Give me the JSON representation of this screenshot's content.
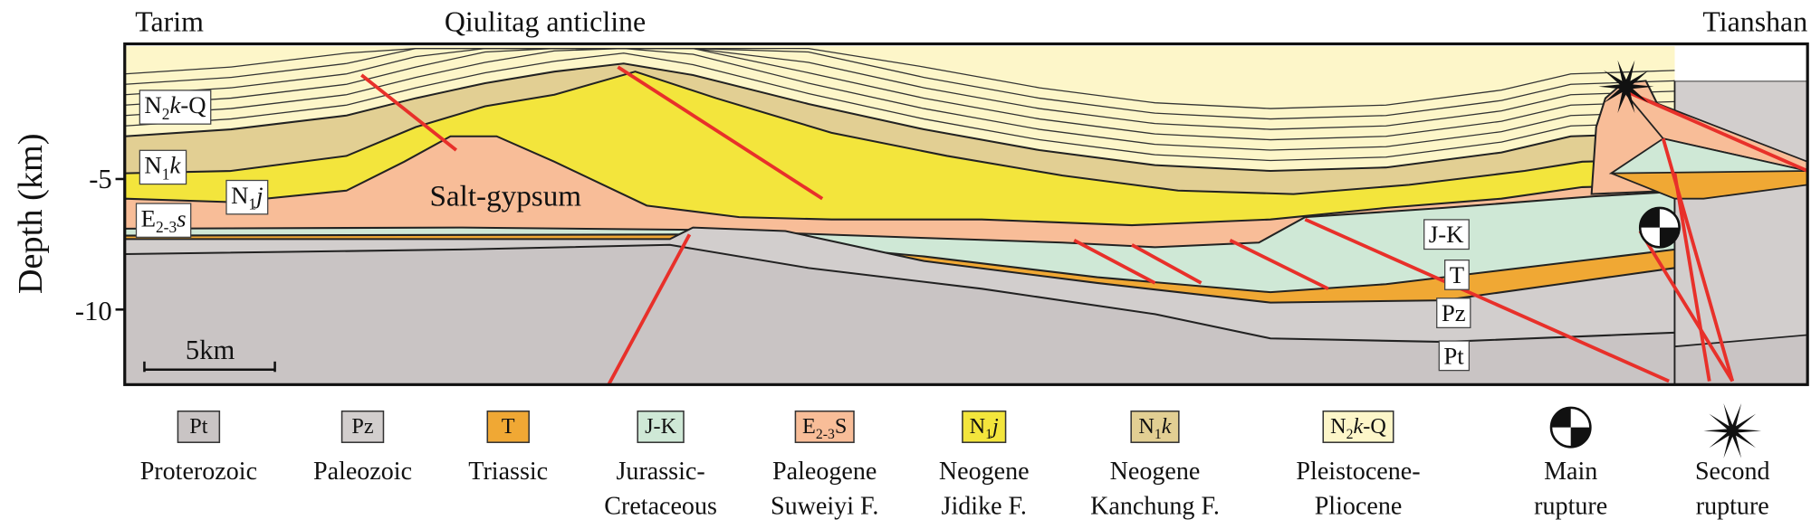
{
  "header": {
    "left": "Tarim",
    "center": "Qiulitag anticline",
    "right": "Tianshan"
  },
  "axis": {
    "label": "Depth (km)",
    "ticks": [
      "-5",
      "-10"
    ]
  },
  "scale_bar": "5km",
  "section_labels": [
    [
      {
        "t": "N"
      },
      {
        "t": "2",
        "sub": true
      },
      {
        "t": "k",
        "italic": true
      },
      {
        "t": "-Q"
      }
    ],
    [
      {
        "t": "N"
      },
      {
        "t": "1",
        "sub": true
      },
      {
        "t": "k",
        "italic": true
      }
    ],
    [
      {
        "t": "N"
      },
      {
        "t": "1",
        "sub": true
      },
      {
        "t": "j",
        "italic": true
      }
    ],
    [
      {
        "t": "E"
      },
      {
        "t": "2-3",
        "sub": true
      },
      {
        "t": "s",
        "italic": true
      }
    ],
    [
      {
        "t": "Salt-gypsum"
      }
    ],
    [
      {
        "t": "J-K"
      }
    ],
    [
      {
        "t": "T"
      }
    ],
    [
      {
        "t": "Pz"
      }
    ],
    [
      {
        "t": "Pt"
      }
    ]
  ],
  "legend": [
    {
      "symbol": [
        {
          "t": "Pt"
        }
      ],
      "color": "#c9c4c4",
      "label": [
        "Proterozoic"
      ]
    },
    {
      "symbol": [
        {
          "t": "Pz"
        }
      ],
      "color": "#d2cecd",
      "label": [
        "Paleozoic"
      ]
    },
    {
      "symbol": [
        {
          "t": "T"
        }
      ],
      "color": "#f0a834",
      "label": [
        "Triassic"
      ]
    },
    {
      "symbol": [
        {
          "t": "J-K"
        }
      ],
      "color": "#cfe8d6",
      "label": [
        "Jurassic-",
        "Cretaceous"
      ]
    },
    {
      "symbol": [
        {
          "t": "E"
        },
        {
          "t": "2-3",
          "sub": true
        },
        {
          "t": "S"
        }
      ],
      "color": "#f8bd98",
      "label": [
        "Paleogene",
        "Suweiyi F."
      ]
    },
    {
      "symbol": [
        {
          "t": "N"
        },
        {
          "t": "1",
          "sub": true
        },
        {
          "t": "j",
          "italic": true
        }
      ],
      "color": "#f3e53c",
      "label": [
        "Neogene",
        "Jidike F."
      ]
    },
    {
      "symbol": [
        {
          "t": "N"
        },
        {
          "t": "1",
          "sub": true
        },
        {
          "t": "k",
          "italic": true
        }
      ],
      "color": "#e2cf93",
      "label": [
        "Neogene",
        "Kanchung F."
      ]
    },
    {
      "symbol": [
        {
          "t": "N"
        },
        {
          "t": "2",
          "sub": true
        },
        {
          "t": "k",
          "italic": true
        },
        {
          "t": "-Q"
        }
      ],
      "color": "#fdf6c9",
      "label": [
        "Pleistocene-",
        "Pliocene"
      ]
    },
    {
      "icon": "beachball",
      "label": [
        "Main",
        "rupture"
      ]
    },
    {
      "icon": "star",
      "label": [
        "Second",
        "rupture"
      ]
    }
  ]
}
